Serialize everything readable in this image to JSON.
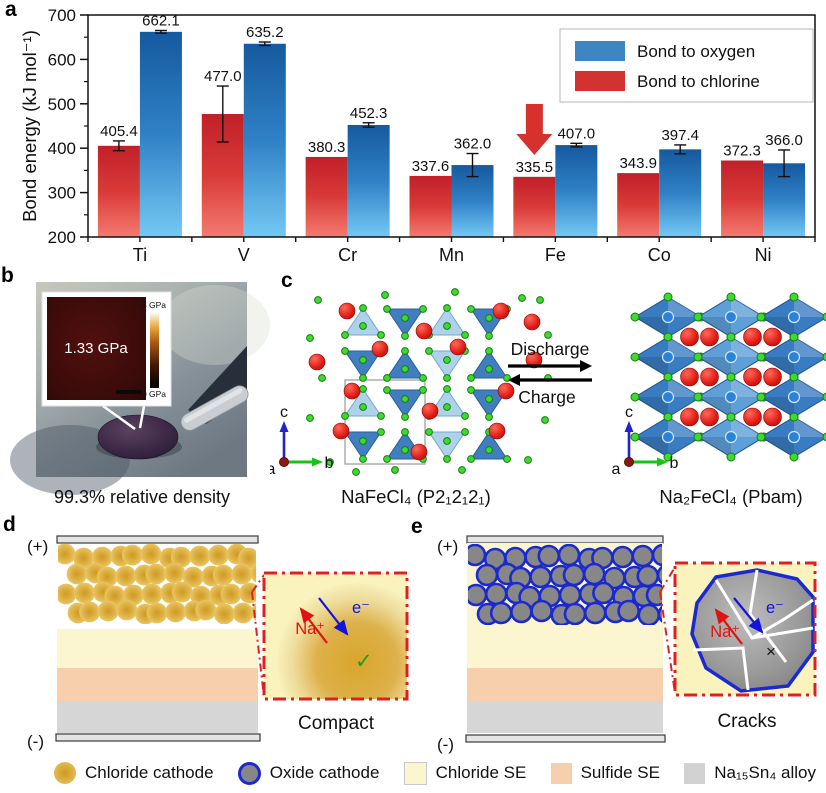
{
  "panel_letters": {
    "a": "a",
    "b": "b",
    "c": "c",
    "d": "d",
    "e": "e"
  },
  "chart_data": {
    "type": "bar",
    "title": "",
    "xlabel": "",
    "ylabel": "Bond energy (kJ mol⁻¹)",
    "ylim": [
      200,
      700
    ],
    "yticks": [
      200,
      300,
      400,
      500,
      600,
      700
    ],
    "grid": false,
    "legend_position": "top-right",
    "categories": [
      "Ti",
      "V",
      "Cr",
      "Mn",
      "Fe",
      "Co",
      "Ni"
    ],
    "series": [
      {
        "name": "Bond to chlorine",
        "color": "#d23330",
        "values": [
          405.4,
          477.0,
          380.3,
          337.6,
          335.5,
          343.9,
          372.3
        ],
        "errors": [
          11,
          63,
          0,
          0,
          0,
          0,
          0
        ]
      },
      {
        "name": "Bond to oxygen",
        "color": "#3e86c1",
        "values": [
          662.1,
          635.2,
          452.3,
          362.0,
          407.0,
          397.4,
          366.0
        ],
        "errors": [
          3,
          4,
          5,
          26,
          4,
          10,
          30
        ]
      }
    ],
    "legend_items": [
      "Bond to oxygen",
      "Bond to chlorine"
    ],
    "annotation": {
      "type": "down-arrow",
      "category": "Fe",
      "series": "Bond to chlorine",
      "color": "#d7312e"
    }
  },
  "panel_b": {
    "inset_value": "1.33 GPa",
    "colorbar_top": "5 GPa",
    "colorbar_bottom": "0 GPa",
    "caption": "99.3% relative density"
  },
  "panel_c": {
    "discharge": "Discharge",
    "charge": "Charge",
    "left_formula": "NaFeCl₄ (P2₁2₁2₁)",
    "right_formula": "Na₂FeCl₄ (Pbam)",
    "axis_a": "a",
    "axis_b": "b",
    "axis_c": "c"
  },
  "panel_d": {
    "plus": "(+)",
    "minus": "(-)",
    "na_ion": "Na⁺",
    "electron": "e⁻",
    "check": "✓",
    "label": "Compact"
  },
  "panel_e": {
    "plus": "(+)",
    "minus": "(-)",
    "na_ion": "Na⁺",
    "electron": "e⁻",
    "cross": "×",
    "label": "Cracks"
  },
  "legend": {
    "items": [
      {
        "label": "Chloride cathode",
        "color": "#ddab33"
      },
      {
        "label": "Oxide cathode",
        "color": "#878787",
        "outline": "#1a2ad0"
      },
      {
        "label": "Chloride SE",
        "color": "#fbf6cf"
      },
      {
        "label": "Sulfide SE",
        "color": "#f8cfac"
      },
      {
        "label": "Na₁₅Sn₄ alloy",
        "color": "#d2d2d2"
      }
    ]
  }
}
